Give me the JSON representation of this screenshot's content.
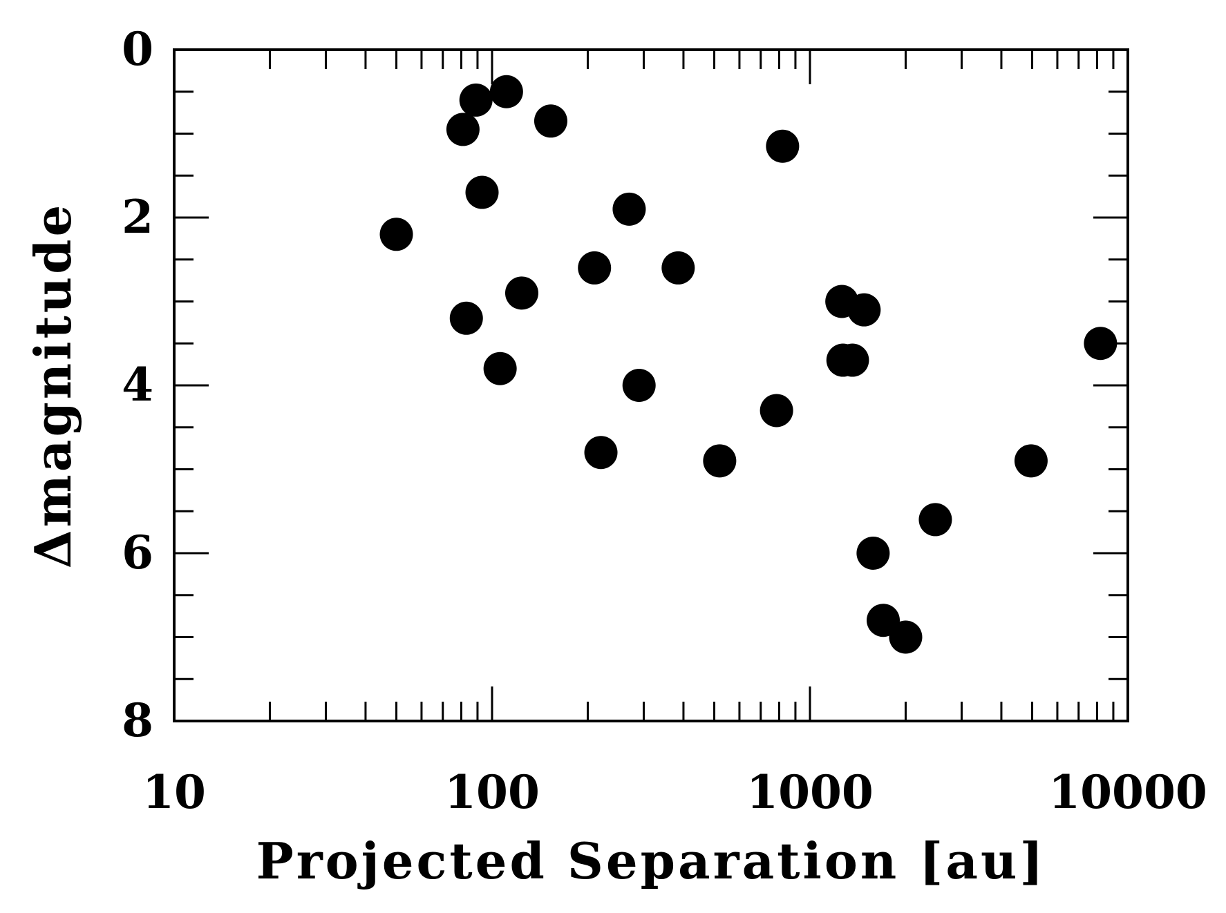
{
  "chart_data": {
    "type": "scatter",
    "xlabel": "Projected Separation [au]",
    "ylabel": "Δmagnitude",
    "xscale": "log",
    "xlim": [
      10,
      10000
    ],
    "ylim": [
      8,
      0
    ],
    "y_inverted": true,
    "grid": false,
    "legend": "none",
    "xticks": [
      10,
      100,
      1000,
      10000
    ],
    "xtick_labels": [
      "10",
      "100",
      "1000",
      "10000"
    ],
    "yticks": [
      0,
      2,
      4,
      6,
      8
    ],
    "ytick_labels": [
      "0",
      "2",
      "4",
      "6",
      "8"
    ],
    "marker_color": "#000000",
    "points": [
      {
        "x": 50,
        "y": 2.2
      },
      {
        "x": 81,
        "y": 0.95
      },
      {
        "x": 83,
        "y": 3.2
      },
      {
        "x": 89,
        "y": 0.6
      },
      {
        "x": 93,
        "y": 1.7
      },
      {
        "x": 106,
        "y": 3.8
      },
      {
        "x": 111,
        "y": 0.5
      },
      {
        "x": 124,
        "y": 2.9
      },
      {
        "x": 153,
        "y": 0.85
      },
      {
        "x": 210,
        "y": 2.6
      },
      {
        "x": 220,
        "y": 4.8
      },
      {
        "x": 270,
        "y": 1.9
      },
      {
        "x": 290,
        "y": 4.0
      },
      {
        "x": 385,
        "y": 2.6
      },
      {
        "x": 520,
        "y": 4.9
      },
      {
        "x": 785,
        "y": 4.3
      },
      {
        "x": 820,
        "y": 1.15
      },
      {
        "x": 1260,
        "y": 3.0
      },
      {
        "x": 1270,
        "y": 3.7
      },
      {
        "x": 1360,
        "y": 3.7
      },
      {
        "x": 1480,
        "y": 3.1
      },
      {
        "x": 1580,
        "y": 6.0
      },
      {
        "x": 1700,
        "y": 6.8
      },
      {
        "x": 2000,
        "y": 7.0
      },
      {
        "x": 2480,
        "y": 5.6
      },
      {
        "x": 4960,
        "y": 4.9
      },
      {
        "x": 8200,
        "y": 3.5
      }
    ]
  }
}
